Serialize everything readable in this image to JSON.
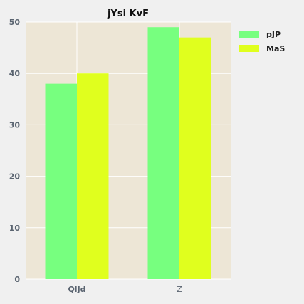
{
  "chart_data": {
    "type": "bar",
    "title": "jYsi  KvF",
    "xlabel": "",
    "ylabel": "",
    "categories": [
      "QlJd",
      "Z"
    ],
    "series": [
      {
        "name": "pJP",
        "values": [
          38,
          49
        ],
        "color": "#77ff7f"
      },
      {
        "name": "MaS",
        "values": [
          40,
          47
        ],
        "color": "#e0ff1e"
      }
    ],
    "ylim": [
      0,
      50
    ],
    "yticks": [
      0,
      10,
      20,
      30,
      40,
      50
    ],
    "grid": true,
    "legend_position": "top-right",
    "plot_background": "#ede6d6",
    "page_background": "#f0f0f0"
  }
}
